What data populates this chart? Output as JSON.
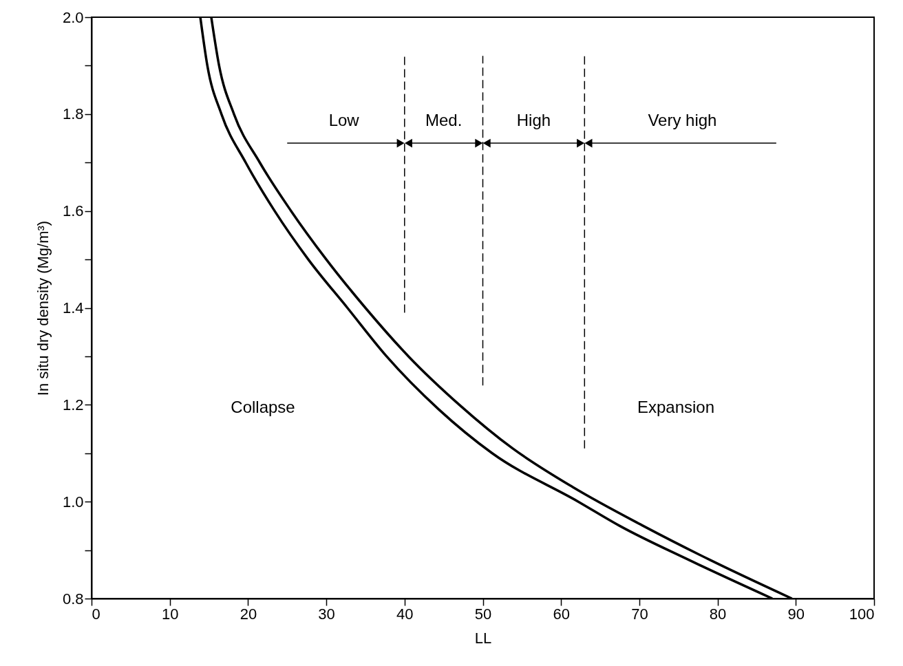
{
  "chart_data": {
    "type": "line",
    "xlabel": "LL",
    "ylabel": "In situ dry density (Mg/m³)",
    "xlim": [
      0,
      100
    ],
    "ylim": [
      0.8,
      2.0
    ],
    "xticks": [
      0,
      10,
      20,
      30,
      40,
      50,
      60,
      70,
      80,
      90,
      100
    ],
    "yticks": [
      {
        "value": 0.8,
        "label": "0.8"
      },
      {
        "value": 0.9,
        "label": null
      },
      {
        "value": 1.0,
        "label": "1.0"
      },
      {
        "value": 1.1,
        "label": null
      },
      {
        "value": 1.2,
        "label": "1.2"
      },
      {
        "value": 1.3,
        "label": null
      },
      {
        "value": 1.4,
        "label": "1.4"
      },
      {
        "value": 1.5,
        "label": null
      },
      {
        "value": 1.6,
        "label": "1.6"
      },
      {
        "value": 1.7,
        "label": null
      },
      {
        "value": 1.8,
        "label": "1.8"
      },
      {
        "value": 1.9,
        "label": null
      },
      {
        "value": 2.0,
        "label": "2.0"
      }
    ],
    "grid": false,
    "series": [
      {
        "color": "#000000",
        "line_style": "solid",
        "x": [
          13.9,
          14.8,
          16.6,
          19.7,
          23.4,
          27.7,
          32.7,
          37.7,
          44.4,
          51.2,
          62.2,
          67.5,
          76.3,
          87
        ],
        "values": [
          2.0,
          1.9,
          1.8,
          1.7,
          1.6,
          1.5,
          1.4,
          1.3,
          1.19,
          1.1,
          1.0,
          0.95,
          0.88,
          0.8
        ]
      },
      {
        "color": "#000000",
        "line_style": "solid",
        "x": [
          15.3,
          16.3,
          18.2,
          21.5,
          25.5,
          30,
          35,
          40.5,
          47,
          53.8,
          61.5,
          70.5,
          79,
          89.5
        ],
        "values": [
          2.0,
          1.9,
          1.8,
          1.7,
          1.6,
          1.5,
          1.4,
          1.3,
          1.2,
          1.11,
          1.03,
          0.95,
          0.88,
          0.8
        ]
      },
      {
        "color": "#000000",
        "line_style": "dashed",
        "x": [
          40,
          40
        ],
        "values": [
          1.39,
          1.92
        ]
      },
      {
        "color": "#000000",
        "line_style": "dashed",
        "x": [
          50,
          50
        ],
        "values": [
          1.24,
          1.92
        ]
      },
      {
        "color": "#000000",
        "line_style": "dashed",
        "x": [
          63,
          63
        ],
        "values": [
          1.11,
          1.92
        ]
      },
      {
        "color": "#000000",
        "line_style": "solid",
        "marker": "triangle",
        "x": [
          25,
          39.5
        ],
        "values": [
          1.74,
          1.74
        ]
      },
      {
        "color": "#000000",
        "line_style": "solid",
        "marker": "triangle",
        "x": [
          40.5,
          49.5
        ],
        "values": [
          1.74,
          1.74
        ]
      },
      {
        "color": "#000000",
        "line_style": "solid",
        "marker": "triangle",
        "x": [
          50.5,
          62.5
        ],
        "values": [
          1.74,
          1.74
        ]
      },
      {
        "color": "#000000",
        "line_style": "solid",
        "marker": "triangle",
        "x": [
          63.5,
          87.5
        ],
        "values": [
          1.74,
          1.74
        ]
      }
    ],
    "annotations": [
      "Low",
      "Med.",
      "High",
      "Very high",
      "Collapse",
      "Expansion"
    ]
  }
}
